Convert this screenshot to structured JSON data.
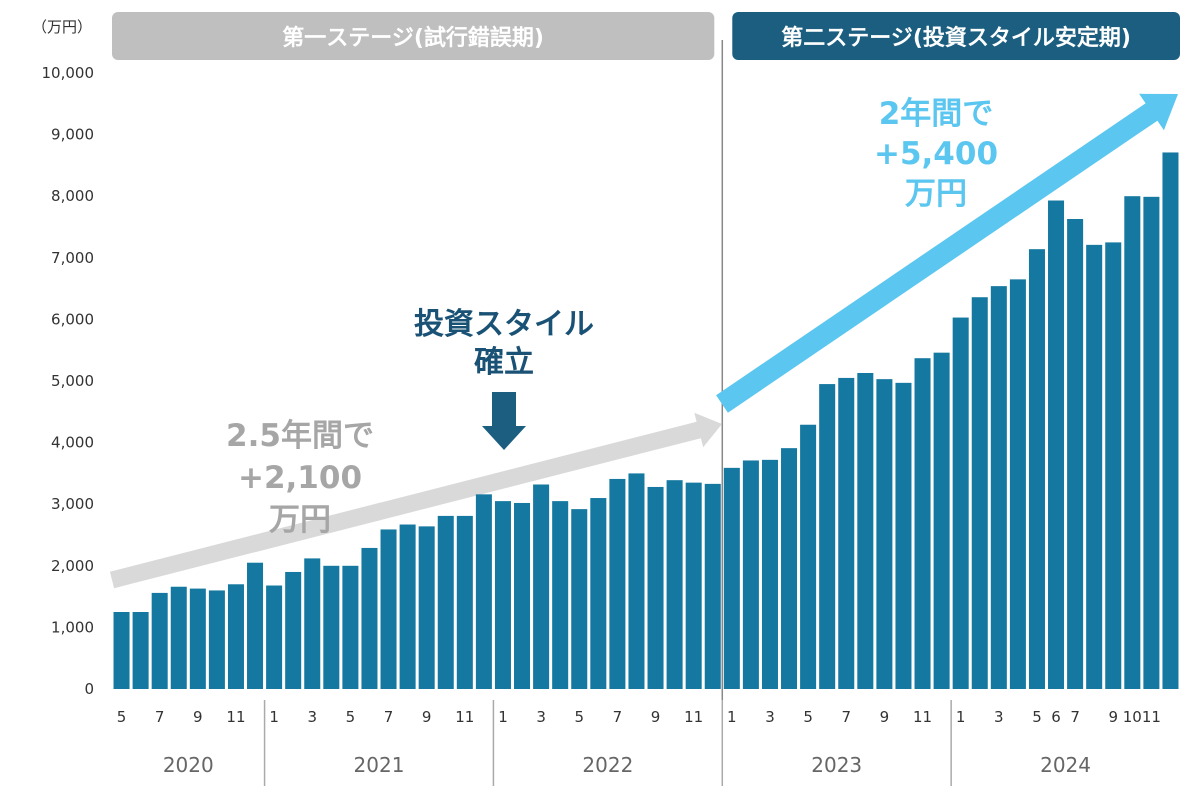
{
  "chart_data": {
    "type": "bar",
    "unit_label": "（万円）",
    "ylim": [
      0,
      10000
    ],
    "yticks": [
      "0",
      "1,000",
      "2,000",
      "3,000",
      "4,000",
      "5,000",
      "6,000",
      "7,000",
      "8,000",
      "9,000",
      "10,000"
    ],
    "years": [
      {
        "label": "2020",
        "months": [
          5,
          6,
          7,
          8,
          9,
          10,
          11,
          12
        ]
      },
      {
        "label": "2021",
        "months": [
          1,
          2,
          3,
          4,
          5,
          6,
          7,
          8,
          9,
          10,
          11,
          12
        ]
      },
      {
        "label": "2022",
        "months": [
          1,
          2,
          3,
          4,
          5,
          6,
          7,
          8,
          9,
          10,
          11,
          12
        ]
      },
      {
        "label": "2023",
        "months": [
          1,
          2,
          3,
          4,
          5,
          6,
          7,
          8,
          9,
          10,
          11,
          12
        ]
      },
      {
        "label": "2024",
        "months": [
          1,
          2,
          3,
          4,
          5,
          6,
          7,
          8,
          9,
          10,
          11,
          12
        ]
      }
    ],
    "x_tick_labels": [
      "5",
      "",
      "7",
      "",
      "9",
      "",
      "11",
      "",
      "1",
      "",
      "3",
      "",
      "5",
      "",
      "7",
      "",
      "9",
      "",
      "11",
      "",
      "1",
      "",
      "3",
      "",
      "5",
      "",
      "7",
      "",
      "9",
      "",
      "11",
      "",
      "1",
      "",
      "3",
      "",
      "5",
      "",
      "7",
      "",
      "9",
      "",
      "11",
      "",
      "1",
      "",
      "3",
      "",
      "5",
      "6",
      "7",
      "",
      "9",
      "10",
      "11",
      ""
    ],
    "values": [
      1250,
      1250,
      1560,
      1660,
      1630,
      1600,
      1700,
      2050,
      1680,
      1900,
      2120,
      2000,
      2000,
      2290,
      2590,
      2670,
      2640,
      2810,
      2810,
      3160,
      3050,
      3020,
      3320,
      3050,
      2920,
      3100,
      3410,
      3500,
      3280,
      3390,
      3350,
      3330,
      3590,
      3710,
      3720,
      3910,
      4290,
      4950,
      5050,
      5130,
      5030,
      4970,
      5370,
      5460,
      6030,
      6360,
      6540,
      6650,
      7140,
      7930,
      7630,
      7210,
      7250,
      8000,
      7990,
      8710
    ],
    "bar_color": "#1478a0",
    "stages": [
      {
        "label": "第一ステージ(試行錯誤期)",
        "color": "#bfbfbf"
      },
      {
        "label": "第二ステージ(投資スタイル安定期)",
        "color": "#1b5e80"
      }
    ],
    "annotations": {
      "style_established": [
        "投資スタイル",
        "確立"
      ],
      "stage1_growth": [
        "2.5年間で",
        "+2,100",
        "万円"
      ],
      "stage2_growth": [
        "2年間で",
        "+5,400",
        "万円"
      ],
      "stage1_arrow_color": "#d9d9d9",
      "stage2_arrow_color": "#5bc6ef",
      "down_arrow_color": "#1b5e80"
    }
  }
}
